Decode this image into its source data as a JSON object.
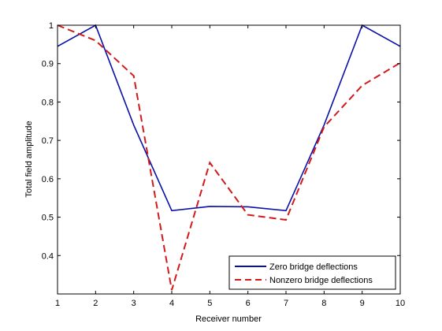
{
  "chart_data": {
    "type": "line",
    "title": "",
    "xlabel": "Receiver number",
    "ylabel": "Total field amplitude",
    "xlim": [
      1,
      10
    ],
    "ylim": [
      0.3,
      1
    ],
    "x": [
      1,
      2,
      3,
      4,
      5,
      6,
      7,
      8,
      9,
      10
    ],
    "xticks": [
      "1",
      "2",
      "3",
      "4",
      "5",
      "6",
      "7",
      "8",
      "9",
      "10"
    ],
    "yticks": [
      0.4,
      0.5,
      0.6,
      0.7,
      0.8,
      0.9,
      1
    ],
    "ytick_labels": [
      "0.4",
      "0.5",
      "0.6",
      "0.7",
      "0.8",
      "0.9",
      "1"
    ],
    "grid": false,
    "legend_position": "bottom-right",
    "series": [
      {
        "name": "Zero bridge deflections",
        "color": "#0a0fa8",
        "style": "solid",
        "values": [
          0.945,
          1.0,
          0.74,
          0.517,
          0.528,
          0.527,
          0.517,
          0.74,
          1.0,
          0.945
        ]
      },
      {
        "name": "Nonzero bridge deflections",
        "color": "#d11a1a",
        "style": "dashed",
        "values": [
          1.0,
          0.96,
          0.868,
          0.31,
          0.642,
          0.506,
          0.493,
          0.735,
          0.843,
          0.902
        ]
      }
    ]
  }
}
